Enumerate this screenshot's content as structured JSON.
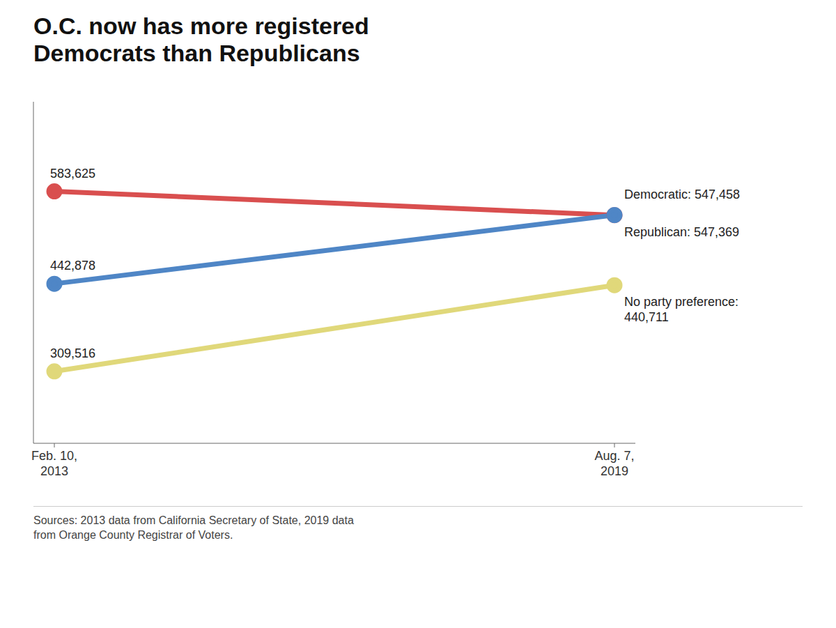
{
  "chart_data": {
    "type": "line",
    "title": "O.C. now has more registered\nDemocrats than Republicans",
    "categories": [
      "Feb. 10,\n2013",
      "Aug. 7,\n2019"
    ],
    "series": [
      {
        "name": "Republican",
        "color": "#d94f4f",
        "values": [
          583625,
          547369
        ],
        "value_labels": [
          "583,625",
          "Republican: 547,369"
        ]
      },
      {
        "name": "Democratic",
        "color": "#4f86c6",
        "values": [
          442878,
          547458
        ],
        "value_labels": [
          "442,878",
          "Democratic: 547,458"
        ]
      },
      {
        "name": "No party preference",
        "color": "#e0d87a",
        "values": [
          309516,
          440711
        ],
        "value_labels": [
          "309,516",
          "No party preference:\n440,711"
        ]
      }
    ],
    "ylim": [
      200000,
      720000
    ],
    "tick_labels": "x",
    "data_labels": true,
    "grid": false,
    "annotations": [
      "Sources: 2013 data from California Secretary of State, 2019 data\nfrom Orange County Registrar of Voters."
    ]
  }
}
